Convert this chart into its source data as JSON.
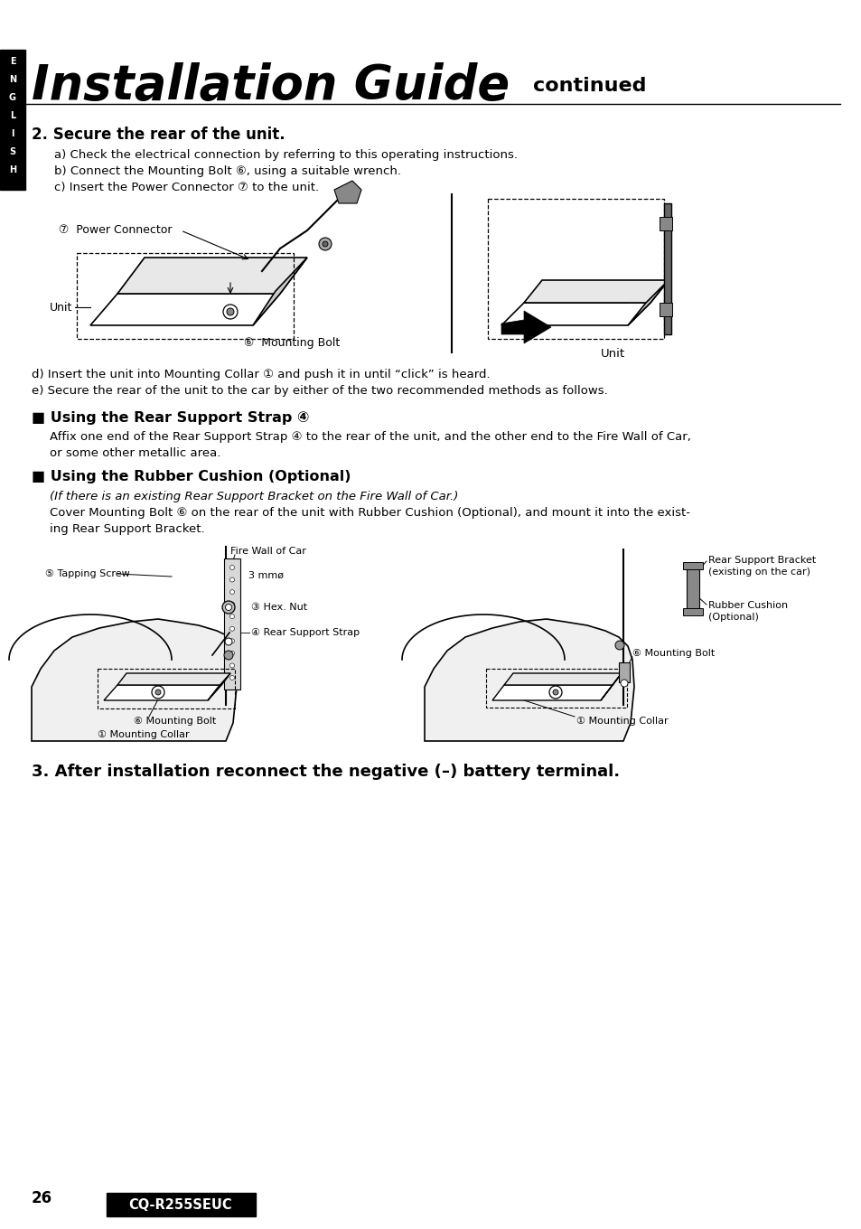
{
  "bg_color": "#ffffff",
  "page_width": 9.54,
  "page_height": 13.6,
  "title_large": "Installation Guide",
  "title_small": "continued",
  "section2_title": "2. Secure the rear of the unit.",
  "section2_body": [
    "a) Check the electrical connection by referring to this operating instructions.",
    "b) Connect the Mounting Bolt ⑥, using a suitable wrench.",
    "c) Insert the Power Connector ⑦ to the unit."
  ],
  "step_d": "d) Insert the unit into Mounting Collar ① and push it in until “click” is heard.",
  "step_e": "e) Secure the rear of the unit to the car by either of the two recommended methods as follows.",
  "section_strap_title": "■ Using the Rear Support Strap ④",
  "section_strap_body1": "Affix one end of the Rear Support Strap ④ to the rear of the unit, and the other end to the Fire Wall of Car,",
  "section_strap_body2": "or some other metallic area.",
  "section_cushion_title": "■ Using the Rubber Cushion (Optional)",
  "section_cushion_sub": "(If there is an existing Rear Support Bracket on the Fire Wall of Car.)",
  "section_cushion_body1": "Cover Mounting Bolt ⑥ on the rear of the unit with Rubber Cushion (Optional), and mount it into the exist-",
  "section_cushion_body2": "ing Rear Support Bracket.",
  "step3_title": "3. After installation reconnect the negative (–) battery terminal.",
  "page_number": "26",
  "model_label": "CQ-R255SEUC",
  "sidebar_letters": [
    "E",
    "N",
    "G",
    "L",
    "I",
    "S",
    "H"
  ]
}
